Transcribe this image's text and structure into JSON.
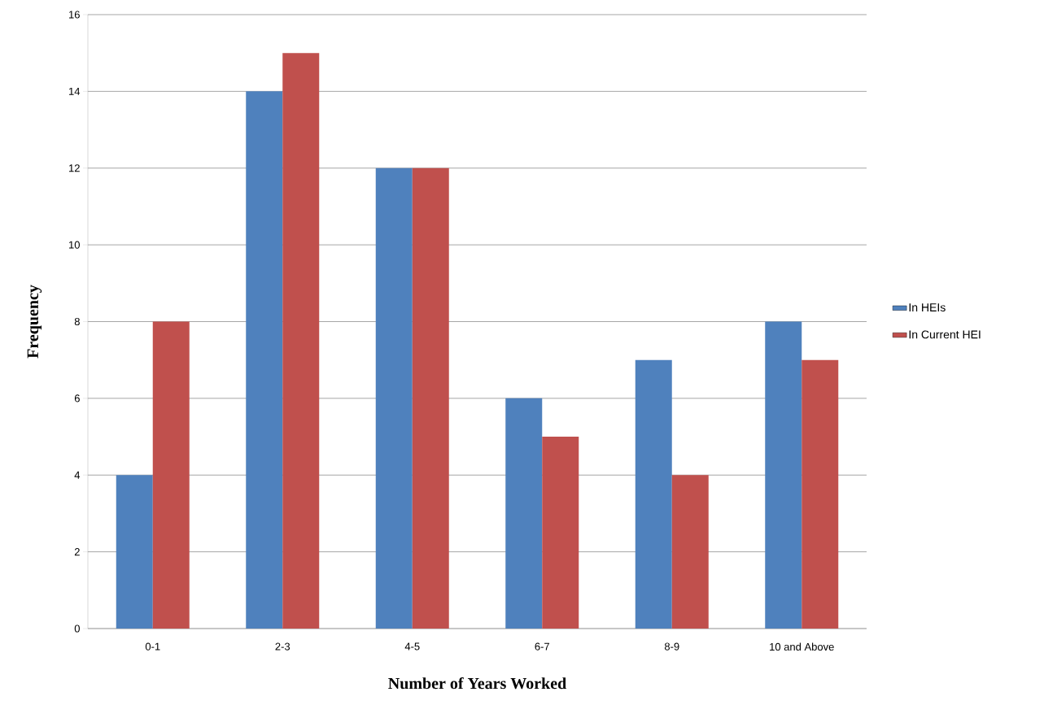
{
  "chart_data": {
    "type": "bar",
    "xlabel": "Number of Years Worked",
    "ylabel": "Frequency",
    "categories": [
      "0-1",
      "2-3",
      "4-5",
      "6-7",
      "8-9",
      "10 and Above"
    ],
    "series": [
      {
        "name": "In HEIs",
        "color": "#4f81bd",
        "values": [
          4,
          14,
          12,
          6,
          7,
          8
        ]
      },
      {
        "name": "In Current HEI",
        "color": "#c0504d",
        "values": [
          8,
          15,
          12,
          5,
          4,
          7
        ]
      }
    ],
    "ylim": [
      0,
      16
    ],
    "yticks": [
      0,
      2,
      4,
      6,
      8,
      10,
      12,
      14,
      16
    ],
    "grid": "y",
    "legend": "right"
  }
}
